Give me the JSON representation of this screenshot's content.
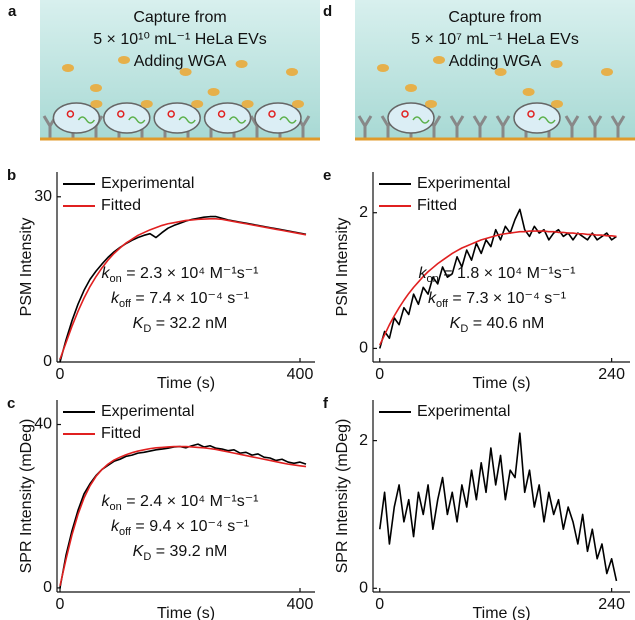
{
  "illustrations": [
    {
      "panel_label": "a",
      "lines": [
        "Capture from",
        "5 × 10¹⁰ mL⁻¹ HeLa EVs",
        "Adding WGA"
      ]
    },
    {
      "panel_label": "d",
      "lines": [
        "Capture from",
        "5 × 10⁷ mL⁻¹ HeLa EVs",
        "Adding WGA"
      ]
    }
  ],
  "chart_data": [
    {
      "type": "line",
      "panel_label": "b",
      "x_label": "Time (s)",
      "y_label": "PSM Intensity",
      "x": [
        0,
        10,
        20,
        30,
        40,
        50,
        60,
        70,
        80,
        90,
        100,
        110,
        120,
        130,
        140,
        150,
        160,
        170,
        180,
        190,
        200,
        210,
        220,
        230,
        240,
        250,
        260,
        270,
        280,
        290,
        300,
        310,
        320,
        330,
        340,
        350,
        360,
        370,
        380,
        390,
        400,
        410
      ],
      "series": [
        {
          "name": "Experimental",
          "color": "#000000",
          "values": [
            0,
            4,
            7.5,
            10.5,
            13,
            15,
            16.5,
            17.8,
            19,
            20,
            20.8,
            21.5,
            22.1,
            22.6,
            23,
            23.3,
            22.6,
            23.5,
            24.3,
            24.8,
            25.2,
            25.6,
            25.9,
            26.1,
            26.3,
            26.4,
            26.4,
            26.1,
            25.8,
            25.6,
            25.4,
            25.2,
            25.0,
            24.8,
            24.6,
            24.4,
            24.2,
            24.0,
            23.8,
            23.6,
            23.4,
            23.2
          ]
        },
        {
          "name": "Fitted",
          "color": "#e02020",
          "values": [
            0.5,
            3.5,
            6.5,
            9.2,
            11.6,
            13.7,
            15.5,
            17.1,
            18.5,
            19.7,
            20.7,
            21.6,
            22.3,
            23,
            23.5,
            24,
            24.4,
            24.8,
            25.1,
            25.3,
            25.5,
            25.7,
            25.8,
            25.9,
            25.95,
            26,
            26,
            25.9,
            25.7,
            25.5,
            25.3,
            25.1,
            24.9,
            24.7,
            24.5,
            24.3,
            24.1,
            23.9,
            23.7,
            23.5,
            23.3,
            23.1
          ]
        }
      ],
      "xlim": [
        -5,
        425
      ],
      "ylim": [
        0,
        34.5
      ],
      "xticks": [
        0,
        400
      ],
      "yticks": [
        0,
        30
      ],
      "annotations": [
        {
          "symbol": "k",
          "sub": "on",
          "text": " = 2.3 × 10⁴ M⁻¹s⁻¹"
        },
        {
          "symbol": "k",
          "sub": "off",
          "text": " = 7.4 × 10⁻⁴ s⁻¹"
        },
        {
          "symbol": "K",
          "sub": "D",
          "text": " = 32.2 nM"
        }
      ]
    },
    {
      "type": "line",
      "panel_label": "c",
      "x_label": "Time (s)",
      "y_label": "SPR Intensity (mDeg)",
      "x": [
        0,
        10,
        20,
        30,
        40,
        50,
        60,
        70,
        80,
        90,
        100,
        110,
        120,
        130,
        140,
        150,
        160,
        170,
        180,
        190,
        200,
        210,
        220,
        230,
        240,
        250,
        260,
        270,
        280,
        290,
        300,
        310,
        320,
        330,
        340,
        350,
        360,
        370,
        380,
        390,
        400,
        410
      ],
      "series": [
        {
          "name": "Experimental",
          "color": "#000000",
          "values": [
            0,
            8,
            14,
            19,
            23,
            25.5,
            27.5,
            29,
            30,
            31,
            31.5,
            32.2,
            32.5,
            33,
            33.2,
            33.5,
            33.8,
            34,
            34.2,
            34.5,
            34.6,
            34.3,
            34.8,
            35.2,
            34.5,
            34.8,
            34.2,
            34,
            33.6,
            33.8,
            33,
            33.2,
            32.5,
            32.8,
            32,
            31.8,
            31.2,
            31.5,
            30.8,
            30.5,
            30.8,
            30.3
          ]
        },
        {
          "name": "Fitted",
          "color": "#e02020",
          "values": [
            0.5,
            7,
            13,
            18,
            22,
            25,
            27.3,
            29,
            30.3,
            31.3,
            32,
            32.6,
            33.1,
            33.5,
            33.8,
            34.1,
            34.3,
            34.4,
            34.5,
            34.6,
            34.6,
            34.6,
            34.5,
            34.4,
            34.3,
            34.1,
            33.9,
            33.6,
            33.3,
            33,
            32.7,
            32.4,
            32.1,
            31.8,
            31.5,
            31.2,
            30.9,
            30.6,
            30.3,
            30.1,
            29.9,
            29.7
          ]
        }
      ],
      "xlim": [
        -5,
        425
      ],
      "ylim": [
        -1,
        46
      ],
      "xticks": [
        0,
        400
      ],
      "yticks": [
        0,
        40
      ],
      "annotations": [
        {
          "symbol": "k",
          "sub": "on",
          "text": " = 2.4 × 10⁴ M⁻¹s⁻¹"
        },
        {
          "symbol": "k",
          "sub": "off",
          "text": " = 9.4 × 10⁻⁴ s⁻¹"
        },
        {
          "symbol": "K",
          "sub": "D",
          "text": " = 39.2 nM"
        }
      ]
    },
    {
      "type": "line",
      "panel_label": "e",
      "x_label": "Time (s)",
      "y_label": "PSM Intensity",
      "x": [
        0,
        5,
        10,
        15,
        20,
        25,
        30,
        35,
        40,
        45,
        50,
        55,
        60,
        65,
        70,
        75,
        80,
        85,
        90,
        95,
        100,
        105,
        110,
        115,
        120,
        125,
        130,
        135,
        140,
        145,
        150,
        155,
        160,
        165,
        170,
        175,
        180,
        185,
        190,
        195,
        200,
        205,
        210,
        215,
        220,
        225,
        230,
        235,
        240,
        245
      ],
      "series": [
        {
          "name": "Experimental",
          "color": "#000000",
          "values": [
            0,
            0.25,
            0.15,
            0.45,
            0.35,
            0.6,
            0.5,
            0.8,
            0.65,
            0.9,
            0.8,
            1.05,
            0.95,
            1.2,
            1.05,
            1.1,
            1.35,
            1.2,
            1.45,
            1.3,
            1.55,
            1.4,
            1.6,
            1.5,
            1.75,
            1.6,
            1.8,
            1.7,
            1.9,
            2.05,
            1.75,
            1.65,
            1.8,
            1.7,
            1.75,
            1.6,
            1.7,
            1.75,
            1.65,
            1.7,
            1.6,
            1.7,
            1.65,
            1.6,
            1.7,
            1.6,
            1.65,
            1.7,
            1.6,
            1.65
          ]
        },
        {
          "name": "Fitted",
          "color": "#e02020",
          "values": [
            0.05,
            0.2,
            0.35,
            0.48,
            0.6,
            0.71,
            0.81,
            0.9,
            0.98,
            1.06,
            1.13,
            1.19,
            1.25,
            1.3,
            1.35,
            1.4,
            1.44,
            1.48,
            1.51,
            1.54,
            1.57,
            1.6,
            1.62,
            1.64,
            1.66,
            1.68,
            1.69,
            1.7,
            1.71,
            1.72,
            1.72,
            1.73,
            1.73,
            1.73,
            1.73,
            1.72,
            1.72,
            1.71,
            1.71,
            1.7,
            1.7,
            1.69,
            1.69,
            1.68,
            1.68,
            1.67,
            1.67,
            1.66,
            1.66,
            1.65
          ]
        }
      ],
      "xlim": [
        -7,
        259
      ],
      "ylim": [
        -0.2,
        2.6
      ],
      "xticks": [
        0,
        240
      ],
      "yticks": [
        0,
        2
      ],
      "annotations": [
        {
          "symbol": "k",
          "sub": "on",
          "text": " = 1.8 × 10⁴ M⁻¹s⁻¹"
        },
        {
          "symbol": "k",
          "sub": "off",
          "text": " = 7.3 × 10⁻⁴ s⁻¹"
        },
        {
          "symbol": "K",
          "sub": "D",
          "text": " = 40.6 nM"
        }
      ]
    },
    {
      "type": "line",
      "panel_label": "f",
      "x_label": "Time (s)",
      "y_label": "SPR Intensity (mDeg)",
      "x": [
        0,
        5,
        10,
        15,
        20,
        25,
        30,
        35,
        40,
        45,
        50,
        55,
        60,
        65,
        70,
        75,
        80,
        85,
        90,
        95,
        100,
        105,
        110,
        115,
        120,
        125,
        130,
        135,
        140,
        145,
        150,
        155,
        160,
        165,
        170,
        175,
        180,
        185,
        190,
        195,
        200,
        205,
        210,
        215,
        220,
        225,
        230,
        235,
        240,
        245
      ],
      "series": [
        {
          "name": "Experimental",
          "color": "#000000",
          "values": [
            0.8,
            1.3,
            0.6,
            1.1,
            1.4,
            0.9,
            1.2,
            0.7,
            1.3,
            1.0,
            1.4,
            0.8,
            1.2,
            1.5,
            1.0,
            1.3,
            0.9,
            1.4,
            1.1,
            1.6,
            1.2,
            1.7,
            1.3,
            1.9,
            1.4,
            1.8,
            1.2,
            1.6,
            1.5,
            2.1,
            1.3,
            1.6,
            1.1,
            1.4,
            0.9,
            1.3,
            1.0,
            1.2,
            0.8,
            1.1,
            0.9,
            0.6,
            1.0,
            0.5,
            0.8,
            0.4,
            0.6,
            0.2,
            0.4,
            0.1
          ]
        }
      ],
      "xlim": [
        -7,
        259
      ],
      "ylim": [
        -0.05,
        2.55
      ],
      "xticks": [
        0,
        240
      ],
      "yticks": [
        0,
        2
      ]
    }
  ]
}
